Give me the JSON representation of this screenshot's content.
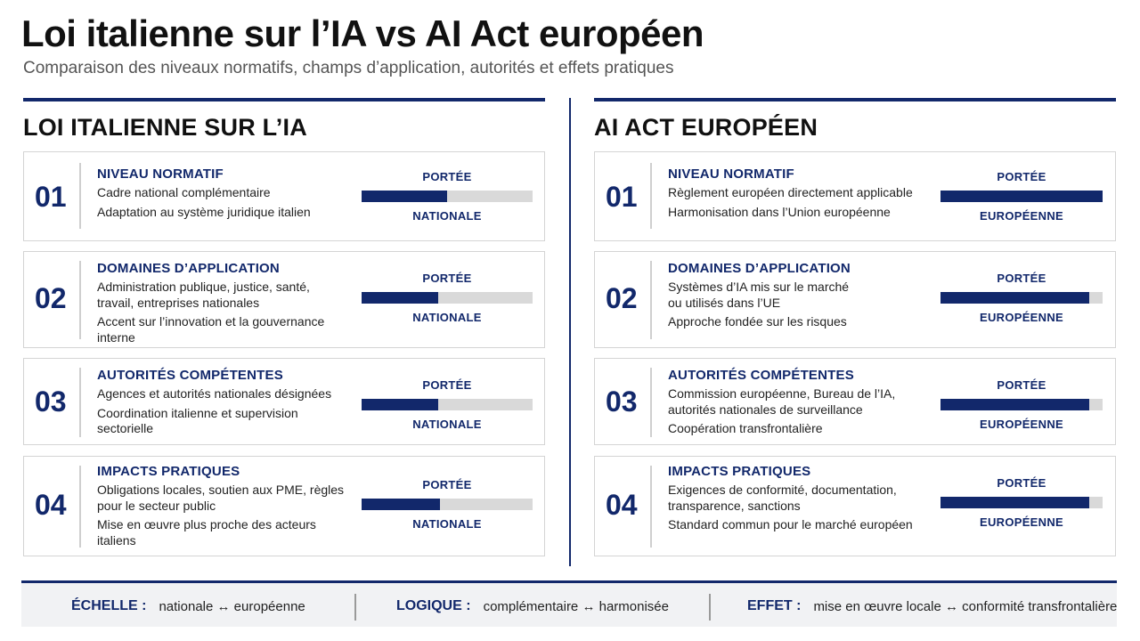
{
  "title": "Loi italienne sur l’IA vs AI Act européen",
  "subtitle": "Comparaison des niveaux normatifs, champs d’application, autorités et effets pratiques",
  "left": {
    "heading": "LOI ITALIENNE SUR L’IA",
    "cards": [
      {
        "num": "01",
        "head": "NIVEAU NORMATIF",
        "lines": [
          "Cadre national complémentaire",
          "Adaptation au système juridique italien"
        ],
        "gauge_label": "PORTÉE",
        "gauge_value": "NATIONALE",
        "level": 0.5
      },
      {
        "num": "02",
        "head": "DOMAINES D’APPLICATION",
        "lines": [
          "Administration publique, justice, santé, travail, entreprises nationales",
          "Accent sur l’innovation et la gouvernance interne"
        ],
        "gauge_label": "PORTÉE",
        "gauge_value": "NATIONALE",
        "level": 0.45
      },
      {
        "num": "03",
        "head": "AUTORITÉS COMPÉTENTES",
        "lines": [
          "Agences et autorités nationales désignées",
          "Coordination italienne et supervision sectorielle"
        ],
        "gauge_label": "PORTÉE",
        "gauge_value": "NATIONALE",
        "level": 0.45
      },
      {
        "num": "04",
        "head": "IMPACTS PRATIQUES",
        "lines": [
          "Obligations locales, soutien aux PME, règles pour le secteur public",
          "Mise en œuvre plus proche des acteurs italiens"
        ],
        "gauge_label": "PORTÉE",
        "gauge_value": "NATIONALE",
        "level": 0.46
      }
    ]
  },
  "right": {
    "heading": "AI ACT EUROPÉEN",
    "cards": [
      {
        "num": "01",
        "head": "NIVEAU NORMATIF",
        "lines": [
          "Règlement européen directement applicable",
          "Harmonisation dans l’Union européenne"
        ],
        "gauge_label": "PORTÉE",
        "gauge_value": "EUROPÉENNE",
        "level": 1.0
      },
      {
        "num": "02",
        "head": "DOMAINES D’APPLICATION",
        "lines": [
          "Systèmes d’IA mis sur le marché ou utilisés dans l’UE",
          "Approche fondée sur les risques"
        ],
        "gauge_label": "PORTÉE",
        "gauge_value": "EUROPÉENNE",
        "level": 0.92
      },
      {
        "num": "03",
        "head": "AUTORITÉS COMPÉTENTES",
        "lines": [
          "Commission européenne, Bureau de l’IA, autorités nationales de surveillance",
          "Coopération transfrontalière"
        ],
        "gauge_label": "PORTÉE",
        "gauge_value": "EUROPÉENNE",
        "level": 0.92
      },
      {
        "num": "04",
        "head": "IMPACTS PRATIQUES",
        "lines": [
          "Exigences de conformité, documentation, transparence, sanctions",
          "Standard commun pour le marché européen"
        ],
        "gauge_label": "PORTÉE",
        "gauge_value": "EUROPÉENNE",
        "level": 0.92
      }
    ]
  },
  "footer": [
    {
      "key": "ÉCHELLE :",
      "value": "nationale ↔ européenne"
    },
    {
      "key": "LOGIQUE :",
      "value": "complémentaire ↔ harmonisée"
    },
    {
      "key": "EFFET :",
      "value": "mise en œuvre locale ↔ conformité transfrontalière"
    }
  ],
  "colors": {
    "accent": "#12286b",
    "track": "#d9d9d9"
  }
}
